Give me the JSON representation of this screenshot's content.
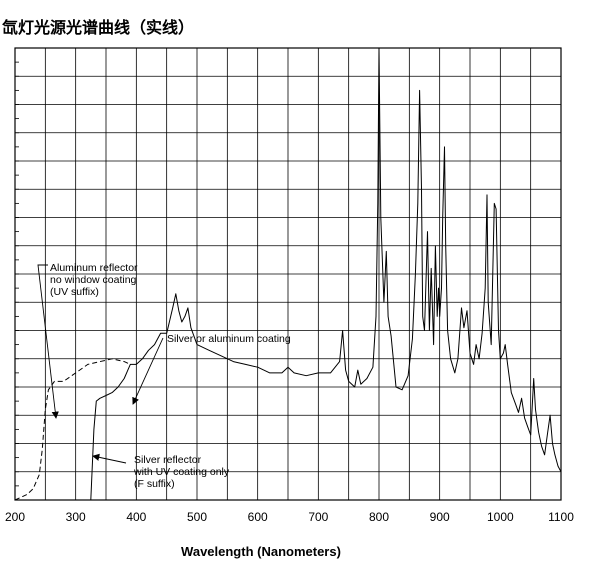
{
  "chart_data": {
    "type": "line",
    "title": "氙灯光源光谱曲线（实线）",
    "xlabel": "Wavelength (Nanometers)",
    "ylabel": "",
    "xlim": [
      200,
      1100
    ],
    "ylim": [
      0,
      16
    ],
    "x_ticks": [
      200,
      300,
      400,
      500,
      600,
      700,
      800,
      900,
      1000,
      1100
    ],
    "grid": true,
    "series": [
      {
        "style": "solid",
        "points": [
          [
            325,
            0
          ],
          [
            330,
            2.5
          ],
          [
            334,
            3.5
          ],
          [
            340,
            3.6
          ],
          [
            350,
            3.7
          ],
          [
            360,
            3.8
          ],
          [
            370,
            4.0
          ],
          [
            380,
            4.3
          ],
          [
            390,
            4.8
          ],
          [
            400,
            4.8
          ],
          [
            410,
            5.0
          ],
          [
            420,
            5.3
          ],
          [
            430,
            5.5
          ],
          [
            440,
            5.9
          ],
          [
            450,
            5.9
          ],
          [
            460,
            6.8
          ],
          [
            465,
            7.3
          ],
          [
            470,
            6.7
          ],
          [
            475,
            6.3
          ],
          [
            480,
            6.5
          ],
          [
            485,
            6.8
          ],
          [
            490,
            6.1
          ],
          [
            500,
            5.5
          ],
          [
            520,
            5.3
          ],
          [
            540,
            5.1
          ],
          [
            560,
            4.9
          ],
          [
            580,
            4.8
          ],
          [
            600,
            4.7
          ],
          [
            620,
            4.5
          ],
          [
            640,
            4.5
          ],
          [
            650,
            4.7
          ],
          [
            660,
            4.5
          ],
          [
            680,
            4.4
          ],
          [
            700,
            4.5
          ],
          [
            720,
            4.5
          ],
          [
            735,
            4.9
          ],
          [
            740,
            6.0
          ],
          [
            745,
            4.6
          ],
          [
            750,
            4.2
          ],
          [
            760,
            4.0
          ],
          [
            765,
            4.6
          ],
          [
            770,
            4.1
          ],
          [
            780,
            4.3
          ],
          [
            790,
            4.7
          ],
          [
            795,
            6.5
          ],
          [
            798,
            10.5
          ],
          [
            800,
            16.0
          ],
          [
            803,
            10.0
          ],
          [
            808,
            7.0
          ],
          [
            812,
            8.8
          ],
          [
            815,
            6.5
          ],
          [
            820,
            5.8
          ],
          [
            828,
            4.0
          ],
          [
            838,
            3.9
          ],
          [
            848,
            4.4
          ],
          [
            855,
            5.7
          ],
          [
            860,
            8.0
          ],
          [
            864,
            10.5
          ],
          [
            867,
            14.5
          ],
          [
            870,
            11.0
          ],
          [
            872,
            6.5
          ],
          [
            875,
            6.0
          ],
          [
            880,
            9.5
          ],
          [
            883,
            6.0
          ],
          [
            886,
            8.2
          ],
          [
            890,
            5.5
          ],
          [
            893,
            9.0
          ],
          [
            896,
            6.5
          ],
          [
            898,
            7.5
          ],
          [
            900,
            6.5
          ],
          [
            903,
            7.5
          ],
          [
            905,
            10.0
          ],
          [
            908,
            12.5
          ],
          [
            910,
            9.0
          ],
          [
            913,
            6.0
          ],
          [
            918,
            5.0
          ],
          [
            925,
            4.5
          ],
          [
            930,
            5.0
          ],
          [
            936,
            6.8
          ],
          [
            940,
            6.1
          ],
          [
            945,
            6.7
          ],
          [
            950,
            5.2
          ],
          [
            956,
            4.8
          ],
          [
            960,
            5.5
          ],
          [
            965,
            5.0
          ],
          [
            970,
            5.9
          ],
          [
            975,
            7.5
          ],
          [
            978,
            10.8
          ],
          [
            980,
            7.0
          ],
          [
            985,
            5.5
          ],
          [
            990,
            10.5
          ],
          [
            993,
            10.3
          ],
          [
            997,
            6.0
          ],
          [
            1000,
            5.0
          ],
          [
            1005,
            5.2
          ],
          [
            1008,
            5.5
          ],
          [
            1012,
            4.8
          ],
          [
            1018,
            3.8
          ],
          [
            1025,
            3.4
          ],
          [
            1030,
            3.1
          ],
          [
            1035,
            3.6
          ],
          [
            1040,
            2.9
          ],
          [
            1045,
            2.6
          ],
          [
            1050,
            2.3
          ],
          [
            1055,
            4.3
          ],
          [
            1058,
            3.2
          ],
          [
            1063,
            2.4
          ],
          [
            1068,
            1.9
          ],
          [
            1073,
            1.6
          ],
          [
            1078,
            2.4
          ],
          [
            1082,
            3.0
          ],
          [
            1086,
            2.0
          ],
          [
            1090,
            1.6
          ],
          [
            1095,
            1.2
          ],
          [
            1100,
            1.0
          ]
        ]
      },
      {
        "style": "dashed",
        "points": [
          [
            200,
            0.0
          ],
          [
            210,
            0.1
          ],
          [
            220,
            0.2
          ],
          [
            230,
            0.4
          ],
          [
            240,
            0.9
          ],
          [
            245,
            1.8
          ],
          [
            250,
            3.2
          ],
          [
            255,
            3.9
          ],
          [
            265,
            4.2
          ],
          [
            280,
            4.2
          ],
          [
            300,
            4.5
          ],
          [
            320,
            4.8
          ],
          [
            340,
            4.9
          ],
          [
            360,
            5.0
          ],
          [
            380,
            4.9
          ],
          [
            390,
            4.8
          ]
        ]
      }
    ],
    "annotations": [
      {
        "lines": [
          "Aluminum reflector",
          "no window coating",
          "  (UV suffix)"
        ]
      },
      {
        "lines": [
          "Silver or aluminum coating"
        ]
      },
      {
        "lines": [
          "Silver reflector",
          "with UV coating only",
          " (F suffix)"
        ]
      }
    ]
  }
}
